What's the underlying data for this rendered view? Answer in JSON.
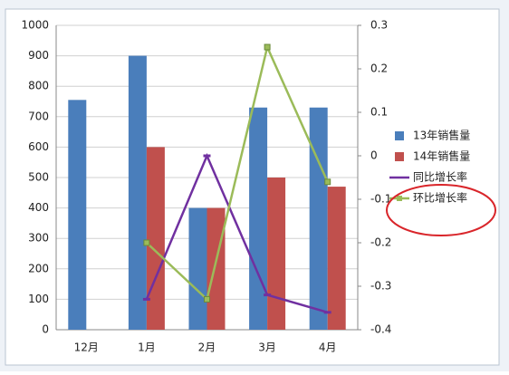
{
  "chart_data": {
    "type": "bar",
    "categories": [
      "12月",
      "1月",
      "2月",
      "3月",
      "4月"
    ],
    "series": [
      {
        "name": "13年销售量",
        "color": "#4a7ebb",
        "type": "bar",
        "values": [
          755,
          900,
          400,
          730,
          730
        ]
      },
      {
        "name": "14年销售量",
        "color": "#c0504d",
        "type": "bar",
        "values": [
          null,
          600,
          400,
          500,
          470
        ]
      },
      {
        "name": "同比增长率",
        "color": "#7030a0",
        "type": "line",
        "axis": "y2",
        "marker": "dash",
        "values": [
          null,
          -0.33,
          0,
          -0.32,
          -0.36
        ]
      },
      {
        "name": "环比增长率",
        "color": "#9bbb59",
        "type": "line",
        "axis": "y2",
        "marker": "square",
        "values": [
          null,
          -0.2,
          -0.33,
          0.25,
          -0.06
        ]
      }
    ],
    "ylim": [
      0,
      1000
    ],
    "yticks": [
      0,
      100,
      200,
      300,
      400,
      500,
      600,
      700,
      800,
      900,
      1000
    ],
    "y2lim": [
      -0.4,
      0.3
    ],
    "y2ticks": [
      -0.4,
      -0.3,
      -0.2,
      -0.1,
      0,
      0.1,
      0.2,
      0.3
    ],
    "grid": true,
    "legend": "right"
  }
}
